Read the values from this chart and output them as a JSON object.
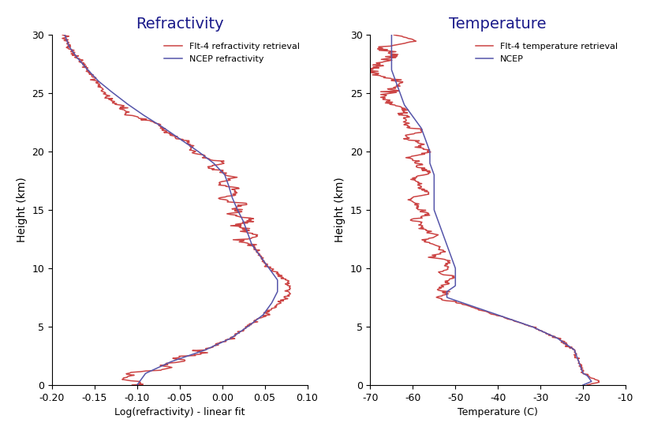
{
  "title_left": "Refractivity",
  "title_right": "Temperature",
  "ylabel": "Height (km)",
  "xlabel_left": "Log(refractivity) - linear fit",
  "xlabel_right": "Temperature (C)",
  "ylim": [
    0,
    30
  ],
  "xlim_left": [
    -0.2,
    0.1
  ],
  "xlim_right": [
    -70,
    -10
  ],
  "yticks": [
    0,
    5,
    10,
    15,
    20,
    25,
    30
  ],
  "xticks_left": [
    -0.2,
    -0.15,
    -0.1,
    -0.05,
    0.0,
    0.05,
    0.1
  ],
  "xticks_right": [
    -70,
    -60,
    -50,
    -40,
    -30,
    -20,
    -10
  ],
  "legend_left": [
    "Flt-4 refractivity retrieval",
    "NCEP refractivity"
  ],
  "legend_right": [
    "Flt-4 temperature retrieval",
    "NCEP"
  ],
  "color_red": "#cc4444",
  "color_blue": "#5555aa",
  "title_color": "#1a1a8a",
  "background_color": "#ffffff",
  "linewidth": 1.1
}
